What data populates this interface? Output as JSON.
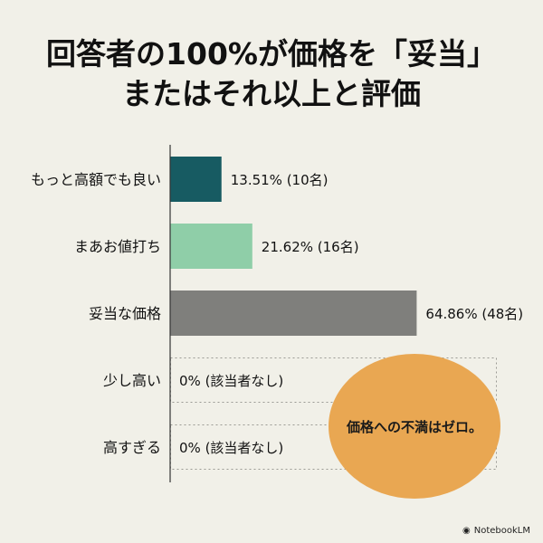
{
  "header": {
    "title_line1": "回答者の100%が価格を「妥当」",
    "title_line2": "またはそれ以上と評価"
  },
  "chart_data": {
    "type": "bar",
    "orientation": "horizontal",
    "categories": [
      "もっと高額でも良い",
      "まあお値打ち",
      "妥当な価格",
      "少し高い",
      "高すぎる"
    ],
    "values": [
      13.51,
      21.62,
      64.86,
      0,
      0
    ],
    "value_labels": [
      "13.51% (10名)",
      "21.62% (16名)",
      "64.86% (48名)",
      "0% (該当者なし)",
      "0% (該当者なし)"
    ],
    "colors": [
      "#175b62",
      "#8fcea8",
      "#7f7f7c",
      "none",
      "none"
    ],
    "xlim": [
      0,
      100
    ],
    "grid": false
  },
  "callout": {
    "text": "価格への不満はゼロ。"
  },
  "footer": {
    "brand": "NotebookLM"
  }
}
